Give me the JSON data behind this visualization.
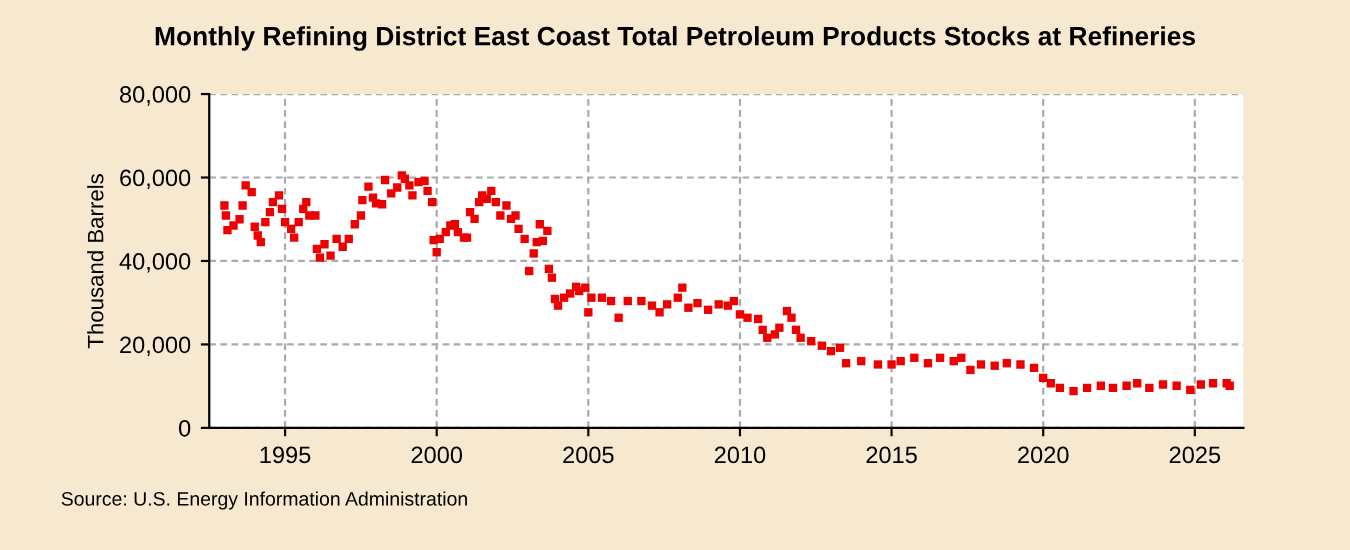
{
  "chart_data": {
    "type": "scatter",
    "title": "Monthly Refining District East Coast Total Petroleum Products Stocks at Refineries",
    "ylabel": "Thousand Barrels",
    "annotations": [
      "Source: U.S. Energy Information Administration"
    ],
    "marker": "square",
    "grid": true,
    "xlim": [
      1992.5,
      2026.6
    ],
    "xticks": [
      1995,
      2000,
      2005,
      2010,
      2015,
      2020,
      2025
    ],
    "ylim": [
      0,
      80000
    ],
    "yticks": [
      {
        "value": 0,
        "label": "0"
      },
      {
        "value": 20000,
        "label": "20,000"
      },
      {
        "value": 40000,
        "label": "40,000"
      },
      {
        "value": 60000,
        "label": "60,000"
      },
      {
        "value": 80000,
        "label": "80,000"
      }
    ],
    "series": [
      {
        "color": "#ee0000",
        "x": [
          1993.0,
          1993.05,
          1993.1,
          1993.3,
          1993.5,
          1993.6,
          1993.7,
          1993.9,
          1994.0,
          1994.1,
          1994.2,
          1994.35,
          1994.5,
          1994.6,
          1994.8,
          1994.9,
          1995.0,
          1995.2,
          1995.3,
          1995.45,
          1995.6,
          1995.7,
          1995.8,
          1996.0,
          1996.05,
          1996.15,
          1996.3,
          1996.5,
          1996.7,
          1996.9,
          1997.1,
          1997.3,
          1997.5,
          1997.55,
          1997.75,
          1997.9,
          1998.0,
          1998.2,
          1998.3,
          1998.5,
          1998.7,
          1998.85,
          1998.95,
          1999.1,
          1999.2,
          1999.4,
          1999.6,
          1999.7,
          1999.85,
          1999.9,
          2000.0,
          2000.1,
          2000.3,
          2000.45,
          2000.6,
          2000.7,
          2000.9,
          2001.0,
          2001.1,
          2001.25,
          2001.4,
          2001.5,
          2001.65,
          2001.8,
          2001.95,
          2002.1,
          2002.3,
          2002.45,
          2002.6,
          2002.7,
          2002.9,
          2003.05,
          2003.2,
          2003.3,
          2003.4,
          2003.5,
          2003.65,
          2003.7,
          2003.8,
          2003.9,
          2004.0,
          2004.2,
          2004.4,
          2004.6,
          2004.7,
          2004.9,
          2005.0,
          2005.1,
          2005.45,
          2005.75,
          2006.0,
          2006.3,
          2006.75,
          2007.1,
          2007.35,
          2007.6,
          2007.95,
          2008.1,
          2008.3,
          2008.6,
          2008.95,
          2009.3,
          2009.6,
          2009.8,
          2010.0,
          2010.25,
          2010.6,
          2010.75,
          2010.9,
          2011.15,
          2011.3,
          2011.55,
          2011.7,
          2011.85,
          2012.0,
          2012.35,
          2012.7,
          2013.0,
          2013.3,
          2013.5,
          2014.0,
          2014.55,
          2015.0,
          2015.3,
          2015.75,
          2016.2,
          2016.6,
          2017.05,
          2017.3,
          2017.6,
          2017.95,
          2018.4,
          2018.8,
          2019.25,
          2019.7,
          2020.0,
          2020.25,
          2020.55,
          2021.0,
          2021.45,
          2021.9,
          2022.3,
          2022.75,
          2023.1,
          2023.5,
          2023.95,
          2024.4,
          2024.85,
          2025.2,
          2025.6,
          2026.05,
          2026.15
        ],
        "values": [
          53300,
          50900,
          47400,
          48500,
          50000,
          53300,
          58100,
          56500,
          48200,
          46100,
          44500,
          49300,
          51700,
          54100,
          55700,
          52500,
          49300,
          47700,
          45600,
          49300,
          52500,
          54100,
          50900,
          50900,
          42900,
          40800,
          44000,
          41300,
          45300,
          43400,
          45300,
          48800,
          50900,
          54600,
          57800,
          55200,
          53800,
          53600,
          59400,
          56200,
          57600,
          60500,
          59700,
          58100,
          55700,
          58900,
          59200,
          56800,
          54100,
          45000,
          42100,
          45300,
          46900,
          48500,
          48800,
          46900,
          45600,
          45600,
          51700,
          50100,
          54100,
          55700,
          54900,
          56800,
          54100,
          50900,
          53300,
          50100,
          50900,
          47700,
          45300,
          37600,
          41800,
          44500,
          48800,
          44800,
          47200,
          38100,
          36000,
          30900,
          29300,
          31200,
          32200,
          33800,
          32800,
          33600,
          27700,
          31200,
          31200,
          30400,
          26400,
          30400,
          30400,
          29300,
          27700,
          29600,
          31200,
          33600,
          28800,
          29900,
          28300,
          29600,
          29300,
          30400,
          27200,
          26400,
          26100,
          23500,
          21600,
          22400,
          24000,
          28000,
          26400,
          23500,
          21600,
          20800,
          19700,
          18400,
          19200,
          15500,
          16000,
          15200,
          15200,
          16000,
          16800,
          15500,
          16800,
          16000,
          16800,
          13900,
          15200,
          14900,
          15500,
          15200,
          14400,
          12000,
          10700,
          9600,
          8800,
          9600,
          10100,
          9600,
          10100,
          10700,
          9600,
          10400,
          10100,
          9100,
          10400,
          10700,
          10700,
          10100
        ]
      }
    ]
  }
}
